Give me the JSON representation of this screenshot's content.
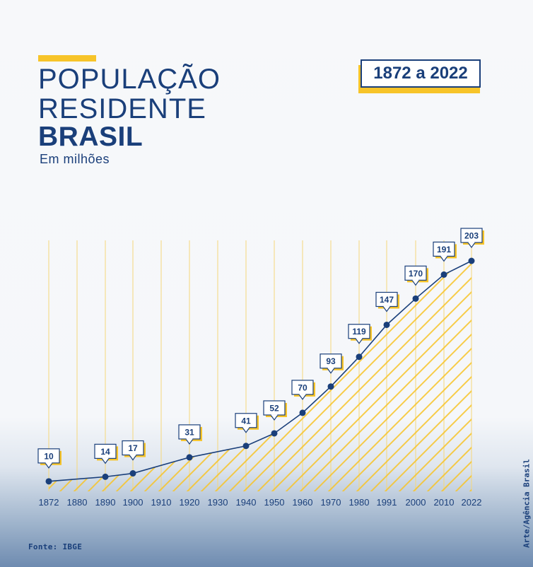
{
  "header": {
    "title_line1": "POPULAÇÃO",
    "title_line2": "RESIDENTE",
    "title_line3": "BRASIL",
    "subtitle": "Em milhões",
    "period": "1872 a 2022"
  },
  "footer": {
    "source": "Fonte: IBGE",
    "credit": "Arte/Agência Brasil"
  },
  "colors": {
    "navy": "#1a3f7a",
    "yellow": "#f7c429",
    "gridline": "#f5d77a"
  },
  "chart_data": {
    "type": "line",
    "x_ticks": [
      "1872",
      "1880",
      "1890",
      "1900",
      "1910",
      "1920",
      "1930",
      "1940",
      "1950",
      "1960",
      "1970",
      "1980",
      "1991",
      "2000",
      "2010",
      "2022"
    ],
    "x": [
      1872,
      1890,
      1900,
      1920,
      1940,
      1950,
      1960,
      1970,
      1980,
      1991,
      2000,
      2010,
      2022
    ],
    "y": [
      10,
      14,
      17,
      31,
      41,
      52,
      70,
      93,
      119,
      147,
      170,
      191,
      203
    ],
    "labels": [
      "10",
      "14",
      "17",
      "31",
      "41",
      "52",
      "70",
      "93",
      "119",
      "147",
      "170",
      "191",
      "203"
    ],
    "ylim": [
      0,
      203
    ],
    "grid": true
  }
}
